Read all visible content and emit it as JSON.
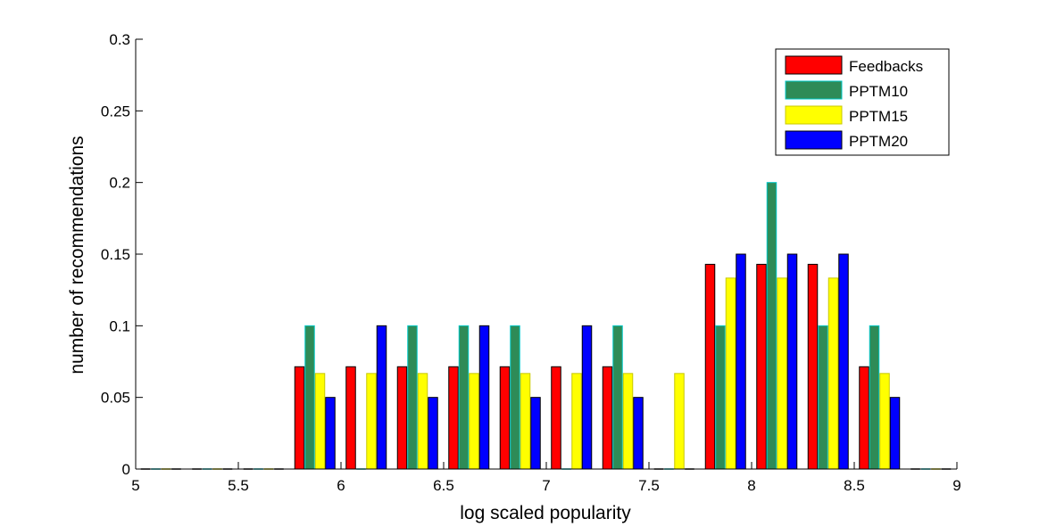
{
  "chart_data": {
    "type": "bar",
    "title": "",
    "xlabel": "log scaled popularity",
    "ylabel": "number of recommendations",
    "xlim": [
      5,
      9
    ],
    "ylim": [
      0,
      0.3
    ],
    "xticks": [
      "5",
      "5.5",
      "6",
      "6.5",
      "7",
      "7.5",
      "8",
      "8.5",
      "9"
    ],
    "yticks": [
      "0",
      "0.05",
      "0.1",
      "0.15",
      "0.2",
      "0.25",
      "0.3"
    ],
    "legend_position": "top-right",
    "grid": false,
    "bin_centers": [
      5.125,
      5.375,
      5.625,
      5.875,
      6.125,
      6.375,
      6.625,
      6.875,
      7.125,
      7.375,
      7.625,
      7.875,
      8.125,
      8.375,
      8.625,
      8.875
    ],
    "series": [
      {
        "name": "Feedbacks",
        "color": "#ff0000",
        "edge": "#000000",
        "values": [
          0,
          0,
          0,
          0.0714,
          0.0714,
          0.0714,
          0.0714,
          0.0714,
          0.0714,
          0.0714,
          0,
          0.1429,
          0.1429,
          0.1429,
          0.0714,
          0
        ]
      },
      {
        "name": "PPTM10",
        "color": "#2e8b57",
        "edge": "#00c8c8",
        "values": [
          0,
          0,
          0,
          0.1,
          0,
          0.1,
          0.1,
          0.1,
          0,
          0.1,
          0,
          0.1,
          0.2,
          0.1,
          0.1,
          0
        ]
      },
      {
        "name": "PPTM15",
        "color": "#ffff00",
        "edge": "#c8c800",
        "values": [
          0,
          0,
          0,
          0.0667,
          0.0667,
          0.0667,
          0.0667,
          0.0667,
          0.0667,
          0.0667,
          0.0667,
          0.1333,
          0.1333,
          0.1333,
          0.0667,
          0
        ]
      },
      {
        "name": "PPTM20",
        "color": "#0000ff",
        "edge": "#000000",
        "values": [
          0,
          0,
          0,
          0.05,
          0.1,
          0.05,
          0.1,
          0.05,
          0.1,
          0.05,
          0,
          0.15,
          0.15,
          0.15,
          0.05,
          0
        ]
      }
    ]
  }
}
